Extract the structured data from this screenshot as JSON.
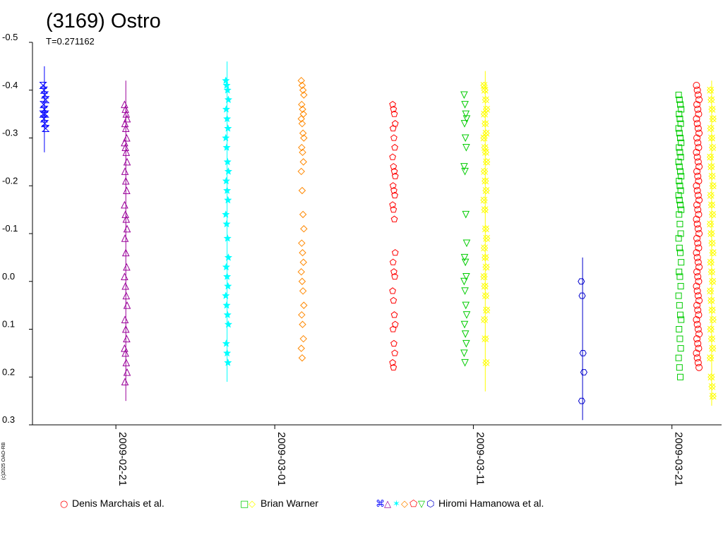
{
  "chart_data": {
    "type": "scatter",
    "title": "(3169) Ostro",
    "subtitle": "T=0.271162",
    "credit": "(c)2025 OAO-RB",
    "y_ticks": [
      "-0.5",
      "-0.4",
      "-0.3",
      "-0.2",
      "-0.1",
      "0.0",
      "0.1",
      "0.2",
      "0.3"
    ],
    "y_tick_values": [
      -0.5,
      -0.4,
      -0.3,
      -0.2,
      -0.1,
      0.0,
      0.1,
      0.2,
      0.3
    ],
    "ylim": [
      -0.5,
      0.3
    ],
    "y_inverted": true,
    "x_ticks": [
      "2009-02-21",
      "2009-03-01",
      "2009-03-11",
      "2009-03-21"
    ],
    "x_tick_days": [
      0,
      8,
      18,
      28
    ],
    "xlim_days": [
      -4.2,
      30.5
    ],
    "grid": false,
    "legend": [
      {
        "label": "Denis Marchais et al.",
        "symbols": "○",
        "colors": [
          "#ff0000"
        ]
      },
      {
        "label": "Brian Warner",
        "symbols": "□◇",
        "colors": [
          "#00cc00",
          "#ffff00"
        ]
      },
      {
        "label": "Hiromi Hamanowa et al.",
        "symbols": "⌘△✶◇⬠▽⬡",
        "colors": [
          "#0000ff",
          "#990099",
          "#00ffff",
          "#ff8800",
          "#ff0000",
          "#00cc00",
          "#0000cc"
        ]
      }
    ],
    "series": [
      {
        "name": "Hiromi Hamanowa et al.",
        "color": "#0000ff",
        "marker": "hourglass",
        "x_day": -3.6,
        "y": [
          -0.41,
          -0.4,
          -0.39,
          -0.38,
          -0.37,
          -0.36,
          -0.35,
          -0.35,
          -0.34,
          -0.33,
          -0.32
        ],
        "err_range": [
          -0.45,
          -0.27
        ]
      },
      {
        "name": "Hiromi Hamanowa et al.",
        "color": "#990099",
        "marker": "triangle",
        "x_day": 0.5,
        "y": [
          -0.37,
          -0.36,
          -0.35,
          -0.34,
          -0.33,
          -0.32,
          -0.3,
          -0.29,
          -0.28,
          -0.27,
          -0.25,
          -0.23,
          -0.21,
          -0.19,
          -0.16,
          -0.14,
          -0.13,
          -0.11,
          -0.09,
          -0.06,
          -0.03,
          -0.01,
          0.01,
          0.03,
          0.05,
          0.08,
          0.1,
          0.12,
          0.14,
          0.15,
          0.17,
          0.19,
          0.21
        ],
        "err_range": [
          -0.42,
          0.25
        ]
      },
      {
        "name": "Hiromi Hamanowa et al.",
        "color": "#00ffff",
        "marker": "star",
        "x_day": 5.6,
        "y": [
          -0.42,
          -0.41,
          -0.4,
          -0.38,
          -0.36,
          -0.34,
          -0.32,
          -0.3,
          -0.28,
          -0.25,
          -0.23,
          -0.21,
          -0.19,
          -0.17,
          -0.14,
          -0.12,
          -0.09,
          -0.05,
          -0.03,
          -0.01,
          0.01,
          0.03,
          0.05,
          0.07,
          0.09,
          0.13,
          0.15,
          0.17
        ],
        "err_range": [
          -0.46,
          0.21
        ]
      },
      {
        "name": "Hiromi Hamanowa et al.",
        "color": "#ff8800",
        "marker": "diamond",
        "x_day": 9.4,
        "y": [
          -0.42,
          -0.41,
          -0.4,
          -0.39,
          -0.37,
          -0.36,
          -0.35,
          -0.34,
          -0.33,
          -0.31,
          -0.3,
          -0.28,
          -0.27,
          -0.25,
          -0.23,
          -0.19,
          -0.14,
          -0.11,
          -0.08,
          -0.06,
          -0.04,
          -0.02,
          0.0,
          0.02,
          0.05,
          0.07,
          0.09,
          0.12,
          0.14,
          0.16
        ]
      },
      {
        "name": "Hiromi Hamanowa et al.",
        "color": "#ff0000",
        "marker": "pentagon",
        "x_day": 14.0,
        "y": [
          -0.37,
          -0.36,
          -0.35,
          -0.33,
          -0.32,
          -0.3,
          -0.28,
          -0.26,
          -0.24,
          -0.23,
          -0.22,
          -0.2,
          -0.19,
          -0.18,
          -0.16,
          -0.15,
          -0.13,
          -0.06,
          -0.04,
          -0.02,
          -0.01,
          0.02,
          0.04,
          0.07,
          0.09,
          0.1,
          0.13,
          0.15,
          0.17,
          0.18
        ]
      },
      {
        "name": "Hiromi Hamanowa et al.",
        "color": "#00cc00",
        "marker": "triangle-down",
        "x_day": 17.6,
        "y": [
          -0.39,
          -0.37,
          -0.35,
          -0.34,
          -0.33,
          -0.3,
          -0.28,
          -0.24,
          -0.23,
          -0.14,
          -0.08,
          -0.05,
          -0.04,
          -0.01,
          0.0,
          0.02,
          0.05,
          0.07,
          0.09,
          0.11,
          0.13,
          0.15,
          0.17
        ]
      },
      {
        "name": "Brian Warner",
        "color": "#ffff00",
        "marker": "diamond-x",
        "x_day": 18.6,
        "y": [
          -0.41,
          -0.4,
          -0.38,
          -0.36,
          -0.35,
          -0.33,
          -0.31,
          -0.3,
          -0.28,
          -0.27,
          -0.25,
          -0.23,
          -0.21,
          -0.19,
          -0.17,
          -0.15,
          -0.11,
          -0.09,
          -0.07,
          -0.05,
          -0.03,
          -0.01,
          0.01,
          0.03,
          0.06,
          0.08,
          0.12,
          0.17
        ],
        "err_range": [
          -0.44,
          0.23
        ]
      },
      {
        "name": "Hiromi Hamanowa et al.",
        "color": "#0000cc",
        "marker": "hexagon",
        "x_day": 23.5,
        "y": [
          0.0,
          0.03,
          0.15,
          0.19,
          0.25
        ],
        "err_range": [
          -0.05,
          0.29
        ]
      },
      {
        "name": "Brian Warner",
        "color": "#00cc00",
        "marker": "square",
        "x_day": 28.4,
        "y": [
          -0.39,
          -0.38,
          -0.37,
          -0.36,
          -0.35,
          -0.34,
          -0.33,
          -0.32,
          -0.31,
          -0.3,
          -0.29,
          -0.28,
          -0.27,
          -0.26,
          -0.25,
          -0.24,
          -0.23,
          -0.22,
          -0.21,
          -0.2,
          -0.19,
          -0.18,
          -0.17,
          -0.16,
          -0.15,
          -0.14,
          -0.12,
          -0.1,
          -0.09,
          -0.07,
          -0.06,
          -0.04,
          -0.02,
          -0.01,
          0.01,
          0.03,
          0.05,
          0.07,
          0.08,
          0.1,
          0.12,
          0.14,
          0.16,
          0.18,
          0.2
        ]
      },
      {
        "name": "Denis Marchais et al.",
        "color": "#ff0000",
        "marker": "circle",
        "x_day": 29.3,
        "y": [
          -0.41,
          -0.4,
          -0.39,
          -0.38,
          -0.37,
          -0.36,
          -0.35,
          -0.34,
          -0.33,
          -0.32,
          -0.31,
          -0.3,
          -0.29,
          -0.28,
          -0.27,
          -0.26,
          -0.25,
          -0.24,
          -0.23,
          -0.22,
          -0.21,
          -0.2,
          -0.19,
          -0.18,
          -0.17,
          -0.16,
          -0.15,
          -0.14,
          -0.13,
          -0.12,
          -0.11,
          -0.1,
          -0.09,
          -0.08,
          -0.07,
          -0.06,
          -0.05,
          -0.04,
          -0.03,
          -0.02,
          -0.01,
          0.0,
          0.01,
          0.02,
          0.03,
          0.04,
          0.05,
          0.06,
          0.07,
          0.08,
          0.09,
          0.1,
          0.11,
          0.12,
          0.13,
          0.14,
          0.15,
          0.16,
          0.17,
          0.18
        ]
      },
      {
        "name": "Brian Warner",
        "color": "#ffff00",
        "marker": "diamond-x",
        "x_day": 30.0,
        "y": [
          -0.4,
          -0.38,
          -0.36,
          -0.34,
          -0.32,
          -0.3,
          -0.28,
          -0.26,
          -0.24,
          -0.22,
          -0.2,
          -0.18,
          -0.16,
          -0.14,
          -0.12,
          -0.1,
          -0.08,
          -0.06,
          -0.04,
          -0.02,
          0.0,
          0.02,
          0.04,
          0.06,
          0.08,
          0.1,
          0.12,
          0.14,
          0.16,
          0.2,
          0.22,
          0.24
        ],
        "err_range": [
          -0.42,
          0.26
        ]
      }
    ]
  }
}
